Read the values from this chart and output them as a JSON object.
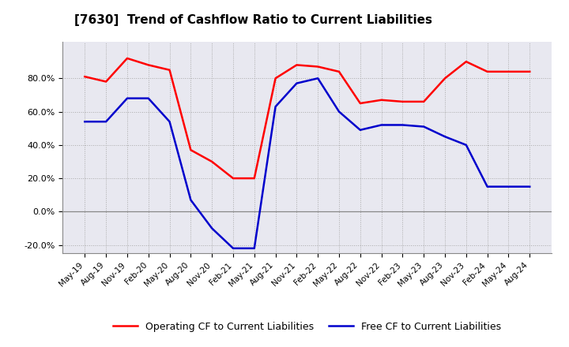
{
  "title": "[7630]  Trend of Cashflow Ratio to Current Liabilities",
  "x_labels": [
    "May-19",
    "Aug-19",
    "Nov-19",
    "Feb-20",
    "May-20",
    "Aug-20",
    "Nov-20",
    "Feb-21",
    "May-21",
    "Aug-21",
    "Nov-21",
    "Feb-22",
    "May-22",
    "Aug-22",
    "Nov-22",
    "Feb-23",
    "May-23",
    "Aug-23",
    "Nov-23",
    "Feb-24",
    "May-24",
    "Aug-24"
  ],
  "operating_cf": [
    0.81,
    0.78,
    0.92,
    0.88,
    0.85,
    0.37,
    0.3,
    0.2,
    0.2,
    0.8,
    0.88,
    0.87,
    0.84,
    0.65,
    0.67,
    0.66,
    0.66,
    0.8,
    0.9,
    0.84,
    0.84,
    0.84
  ],
  "free_cf": [
    0.54,
    0.54,
    0.68,
    0.68,
    0.54,
    0.07,
    -0.1,
    -0.22,
    -0.22,
    0.63,
    0.77,
    0.8,
    0.6,
    0.49,
    0.52,
    0.52,
    0.51,
    0.45,
    0.4,
    0.15,
    0.15,
    0.15
  ],
  "ylim": [
    -0.25,
    1.02
  ],
  "yticks": [
    -0.2,
    0.0,
    0.2,
    0.4,
    0.6,
    0.8
  ],
  "operating_color": "#FF0000",
  "free_color": "#0000CC",
  "plot_bg_color": "#E8E8F0",
  "background_color": "#FFFFFF",
  "grid_color": "#AAAAAA",
  "legend_labels": [
    "Operating CF to Current Liabilities",
    "Free CF to Current Liabilities"
  ]
}
